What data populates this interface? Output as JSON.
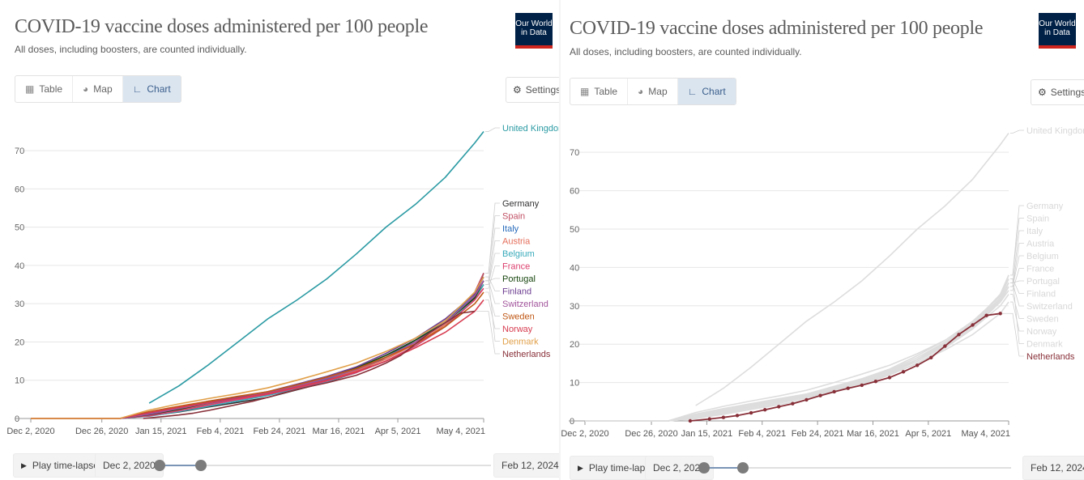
{
  "panels": [
    {
      "title": "COVID-19 vaccine doses administered per 100 people",
      "subtitle": "All doses, including boosters, are counted individually.",
      "logo": [
        "Our World",
        "in Data"
      ],
      "tabs": [
        "Table",
        "Map",
        "Chart"
      ],
      "active_tab": "Chart",
      "settings_label": "Settings",
      "play_label": "Play time-lapse",
      "start_date": "Dec 2, 2020",
      "end_date": "Feb 12, 2024",
      "highlight": null
    },
    {
      "title": "COVID-19 vaccine doses administered per 100 people",
      "subtitle": "All doses, including boosters, are counted individually.",
      "logo": [
        "Our World",
        "in Data"
      ],
      "tabs": [
        "Table",
        "Map",
        "Chart"
      ],
      "active_tab": "Chart",
      "settings_label": "Settings",
      "play_label": "Play time-lapse",
      "start_date": "Dec 2, 2020",
      "end_date": "Feb 12, 2024",
      "highlight": "Netherlands"
    }
  ],
  "icons": {
    "table": "table-icon",
    "map": "globe-icon",
    "chart": "line-chart-icon",
    "settings": "gear-icon",
    "play": "play-icon"
  },
  "chart_data": {
    "type": "line",
    "title": "COVID-19 vaccine doses administered per 100 people",
    "subtitle": "All doses, including boosters, are counted individually.",
    "x_ticks": [
      "Dec 2, 2020",
      "Dec 26, 2020",
      "Jan 15, 2021",
      "Feb 4, 2021",
      "Feb 24, 2021",
      "Mar 16, 2021",
      "Apr 5, 2021",
      "May 4, 2021"
    ],
    "x_tick_days": [
      0,
      24,
      44,
      64,
      84,
      104,
      124,
      153
    ],
    "y_ticks": [
      0,
      10,
      20,
      30,
      40,
      50,
      60,
      70
    ],
    "ylim": [
      0,
      77
    ],
    "grid": "horizontal",
    "legend": "right, end-of-line labels",
    "series": [
      {
        "name": "United Kingdom",
        "color": "#2a9aa3",
        "x": [
          40,
          50,
          60,
          70,
          80,
          90,
          100,
          110,
          120,
          130,
          140,
          150,
          153
        ],
        "y": [
          4,
          8.5,
          14,
          20,
          26,
          31,
          36.5,
          43,
          50,
          56,
          63,
          72,
          75
        ]
      },
      {
        "name": "Germany",
        "color": "#333333",
        "x": [
          0,
          30,
          40,
          50,
          60,
          70,
          80,
          90,
          100,
          110,
          120,
          130,
          140,
          150,
          153
        ],
        "y": [
          0,
          0,
          0.7,
          1.7,
          3,
          4.2,
          5.5,
          7.5,
          9.5,
          12,
          16,
          20,
          25,
          32,
          38
        ]
      },
      {
        "name": "Spain",
        "color": "#c15065",
        "x": [
          0,
          30,
          40,
          50,
          60,
          70,
          80,
          90,
          100,
          110,
          120,
          130,
          140,
          150,
          153
        ],
        "y": [
          0,
          0,
          1.5,
          3,
          4.5,
          5.5,
          6.5,
          8.5,
          10.5,
          13,
          16,
          20,
          25,
          33,
          38
        ]
      },
      {
        "name": "Italy",
        "color": "#286bbb",
        "x": [
          0,
          30,
          40,
          50,
          60,
          70,
          80,
          90,
          100,
          110,
          120,
          130,
          140,
          150,
          153
        ],
        "y": [
          0,
          0,
          1.3,
          2.5,
          3.8,
          5,
          6.3,
          8.2,
          10.2,
          12.5,
          16,
          20.5,
          25.5,
          32,
          36
        ]
      },
      {
        "name": "Austria",
        "color": "#e56e5a",
        "x": [
          0,
          30,
          40,
          50,
          60,
          70,
          80,
          90,
          100,
          110,
          120,
          130,
          140,
          150,
          153
        ],
        "y": [
          0,
          0,
          0.9,
          2.2,
          3.6,
          4.9,
          6.3,
          8.2,
          10,
          12.5,
          15.5,
          19.5,
          24.5,
          31,
          35
        ]
      },
      {
        "name": "Belgium",
        "color": "#38aaba",
        "x": [
          0,
          30,
          40,
          50,
          60,
          70,
          80,
          90,
          100,
          110,
          120,
          130,
          140,
          150,
          153
        ],
        "y": [
          0,
          0,
          0.6,
          1.8,
          3.2,
          4.6,
          6,
          7.8,
          9.6,
          12,
          15,
          19,
          24,
          31.5,
          35
        ]
      },
      {
        "name": "France",
        "color": "#dc3f6e",
        "x": [
          0,
          30,
          40,
          50,
          60,
          70,
          80,
          90,
          100,
          110,
          120,
          130,
          140,
          150,
          153
        ],
        "y": [
          0,
          0,
          0.7,
          2,
          3.5,
          5,
          6.3,
          8,
          9.8,
          12,
          15,
          19,
          24,
          31,
          34
        ]
      },
      {
        "name": "Portugal",
        "color": "#18470f",
        "x": [
          0,
          30,
          40,
          50,
          60,
          70,
          80,
          90,
          100,
          110,
          120,
          130,
          140,
          150,
          153
        ],
        "y": [
          0,
          0,
          1,
          2.4,
          4,
          5.4,
          6.8,
          8.8,
          10.8,
          13.2,
          16.5,
          20.5,
          25,
          31.5,
          36
        ]
      },
      {
        "name": "Finland",
        "color": "#6d3e91",
        "x": [
          0,
          30,
          40,
          50,
          60,
          70,
          80,
          90,
          100,
          110,
          120,
          130,
          140,
          150,
          153
        ],
        "y": [
          0,
          0,
          1.2,
          2.8,
          4.2,
          5.6,
          7,
          9,
          11,
          13.5,
          17,
          21,
          26,
          32.5,
          37
        ]
      },
      {
        "name": "Switzerland",
        "color": "#a2559c",
        "x": [
          0,
          30,
          40,
          50,
          60,
          70,
          80,
          90,
          100,
          110,
          120,
          130,
          140,
          150,
          153
        ],
        "y": [
          0,
          0,
          1.1,
          2.6,
          4,
          5.3,
          6.7,
          8.5,
          10.5,
          12.8,
          16,
          20,
          25,
          32,
          36
        ]
      },
      {
        "name": "Sweden",
        "color": "#c05917",
        "x": [
          0,
          30,
          40,
          50,
          60,
          70,
          80,
          90,
          100,
          110,
          120,
          130,
          140,
          150,
          153
        ],
        "y": [
          0,
          0,
          1.8,
          3.2,
          4.5,
          5.8,
          7,
          8.8,
          10.8,
          13,
          16,
          19.5,
          24,
          30,
          33
        ]
      },
      {
        "name": "Norway",
        "color": "#d73c50",
        "x": [
          0,
          30,
          40,
          50,
          60,
          70,
          80,
          90,
          100,
          110,
          120,
          130,
          140,
          150,
          153
        ],
        "y": [
          0,
          0,
          1.5,
          2.9,
          4.1,
          5.3,
          6.5,
          8.2,
          10,
          12.2,
          15,
          18.5,
          22.5,
          28,
          31
        ]
      },
      {
        "name": "Denmark",
        "color": "#e1a04a",
        "x": [
          0,
          30,
          40,
          50,
          60,
          70,
          80,
          90,
          100,
          110,
          120,
          130,
          140,
          150,
          153
        ],
        "y": [
          0,
          0,
          2.2,
          3.8,
          5.2,
          6.5,
          8,
          10,
          12.2,
          14.5,
          17.5,
          21,
          25.5,
          33,
          37
        ]
      },
      {
        "name": "Netherlands",
        "color": "#883039",
        "x": [
          38,
          45,
          50,
          55,
          60,
          65,
          70,
          75,
          80,
          85,
          90,
          95,
          100,
          105,
          110,
          115,
          120,
          125,
          130,
          135,
          140,
          145,
          150
        ],
        "y": [
          0,
          0.5,
          0.9,
          1.4,
          2.1,
          2.9,
          3.7,
          4.5,
          5.5,
          6.6,
          7.6,
          8.5,
          9.3,
          10.3,
          11.3,
          12.8,
          14.5,
          16.5,
          19.5,
          22.5,
          25,
          27.5,
          28
        ]
      }
    ]
  }
}
